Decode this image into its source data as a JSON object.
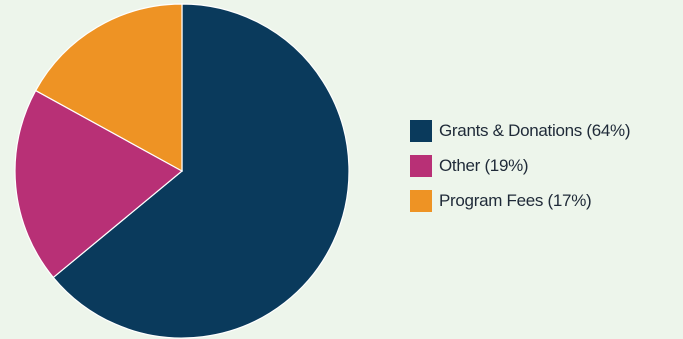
{
  "chart_data": {
    "type": "pie",
    "slices": [
      {
        "label": "Grants & Donations (64%)",
        "value": 64,
        "color": "#0a3a5c"
      },
      {
        "label": "Other (19%)",
        "value": 19,
        "color": "#b83076"
      },
      {
        "label": "Program Fees (17%)",
        "value": 17,
        "color": "#ee9324"
      }
    ],
    "start": "12 o'clock, clockwise",
    "legend_position": "right"
  }
}
